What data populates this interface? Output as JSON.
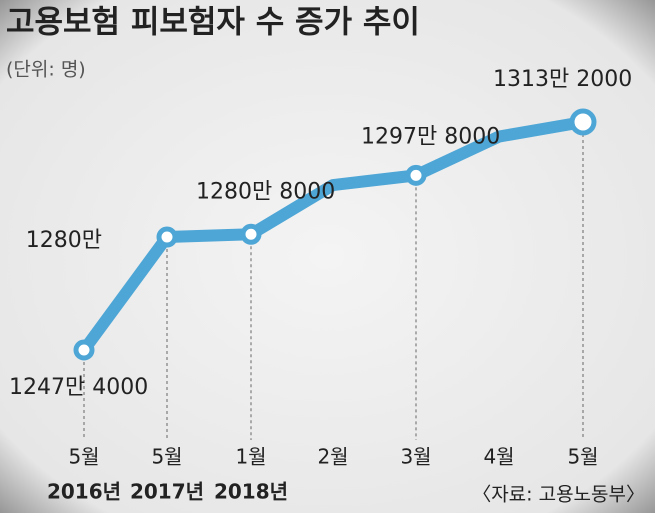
{
  "chart_data": {
    "type": "line",
    "title": "고용보험 피보험자 수 증가 추이",
    "subtitle": "(단위: 명)",
    "source": "〈자료: 고용노동부〉",
    "categories": [
      "5월",
      "5월",
      "1월",
      "2월",
      "3월",
      "4월",
      "5월"
    ],
    "year_labels": [
      "2016년",
      "2017년",
      "2018년",
      null,
      null,
      null,
      null
    ],
    "values": [
      12474000,
      12800000,
      12808000,
      12950000,
      12978000,
      13090000,
      13132000
    ],
    "value_labels": [
      "1247만 4000",
      "1280만",
      "1280만 8000",
      null,
      "1297만 8000",
      null,
      "1313만 2000"
    ],
    "color": "#4ea6d6"
  }
}
